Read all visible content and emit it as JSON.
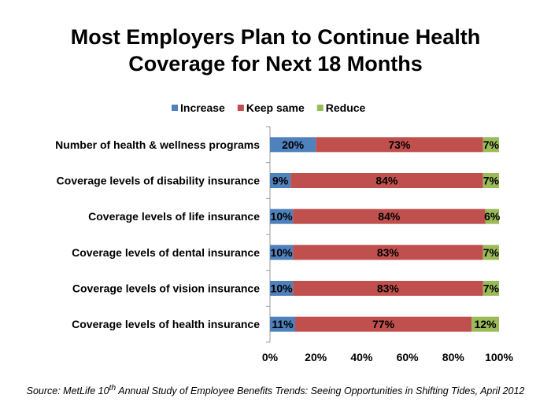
{
  "chart_data": {
    "type": "bar",
    "orientation": "horizontal",
    "stacked": true,
    "title_lines": [
      "Most Employers Plan to Continue Health",
      "Coverage for Next 18 Months"
    ],
    "categories": [
      "Number of health & wellness programs",
      "Coverage levels of disability insurance",
      "Coverage levels of life insurance",
      "Coverage levels of dental insurance",
      "Coverage levels of vision insurance",
      "Coverage levels of health insurance"
    ],
    "series": [
      {
        "name": "Increase",
        "color": "#4F81BD",
        "values": [
          20,
          9,
          10,
          10,
          10,
          11
        ],
        "labels": [
          "20%",
          "9%",
          "10%",
          "10%",
          "10%",
          "11%"
        ]
      },
      {
        "name": "Keep same",
        "color": "#C0504D",
        "values": [
          73,
          84,
          84,
          83,
          83,
          77
        ],
        "labels": [
          "73%",
          "84%",
          "84%",
          "83%",
          "83%",
          "77%"
        ]
      },
      {
        "name": "Reduce",
        "color": "#9BBB59",
        "values": [
          7,
          7,
          6,
          7,
          7,
          12
        ],
        "labels": [
          "7%",
          "7%",
          "6%",
          "7%",
          "7%",
          "12%"
        ]
      }
    ],
    "xlim": [
      0,
      100
    ],
    "xticks": [
      "0%",
      "20%",
      "40%",
      "60%",
      "80%",
      "100%"
    ],
    "legend_position": "top",
    "grid": false
  },
  "source": {
    "prefix": "Source: MetLife 10",
    "sup": "th",
    "suffix": " Annual Study of Employee Benefits Trends: Seeing Opportunities in Shifting Tides, April 2012"
  }
}
